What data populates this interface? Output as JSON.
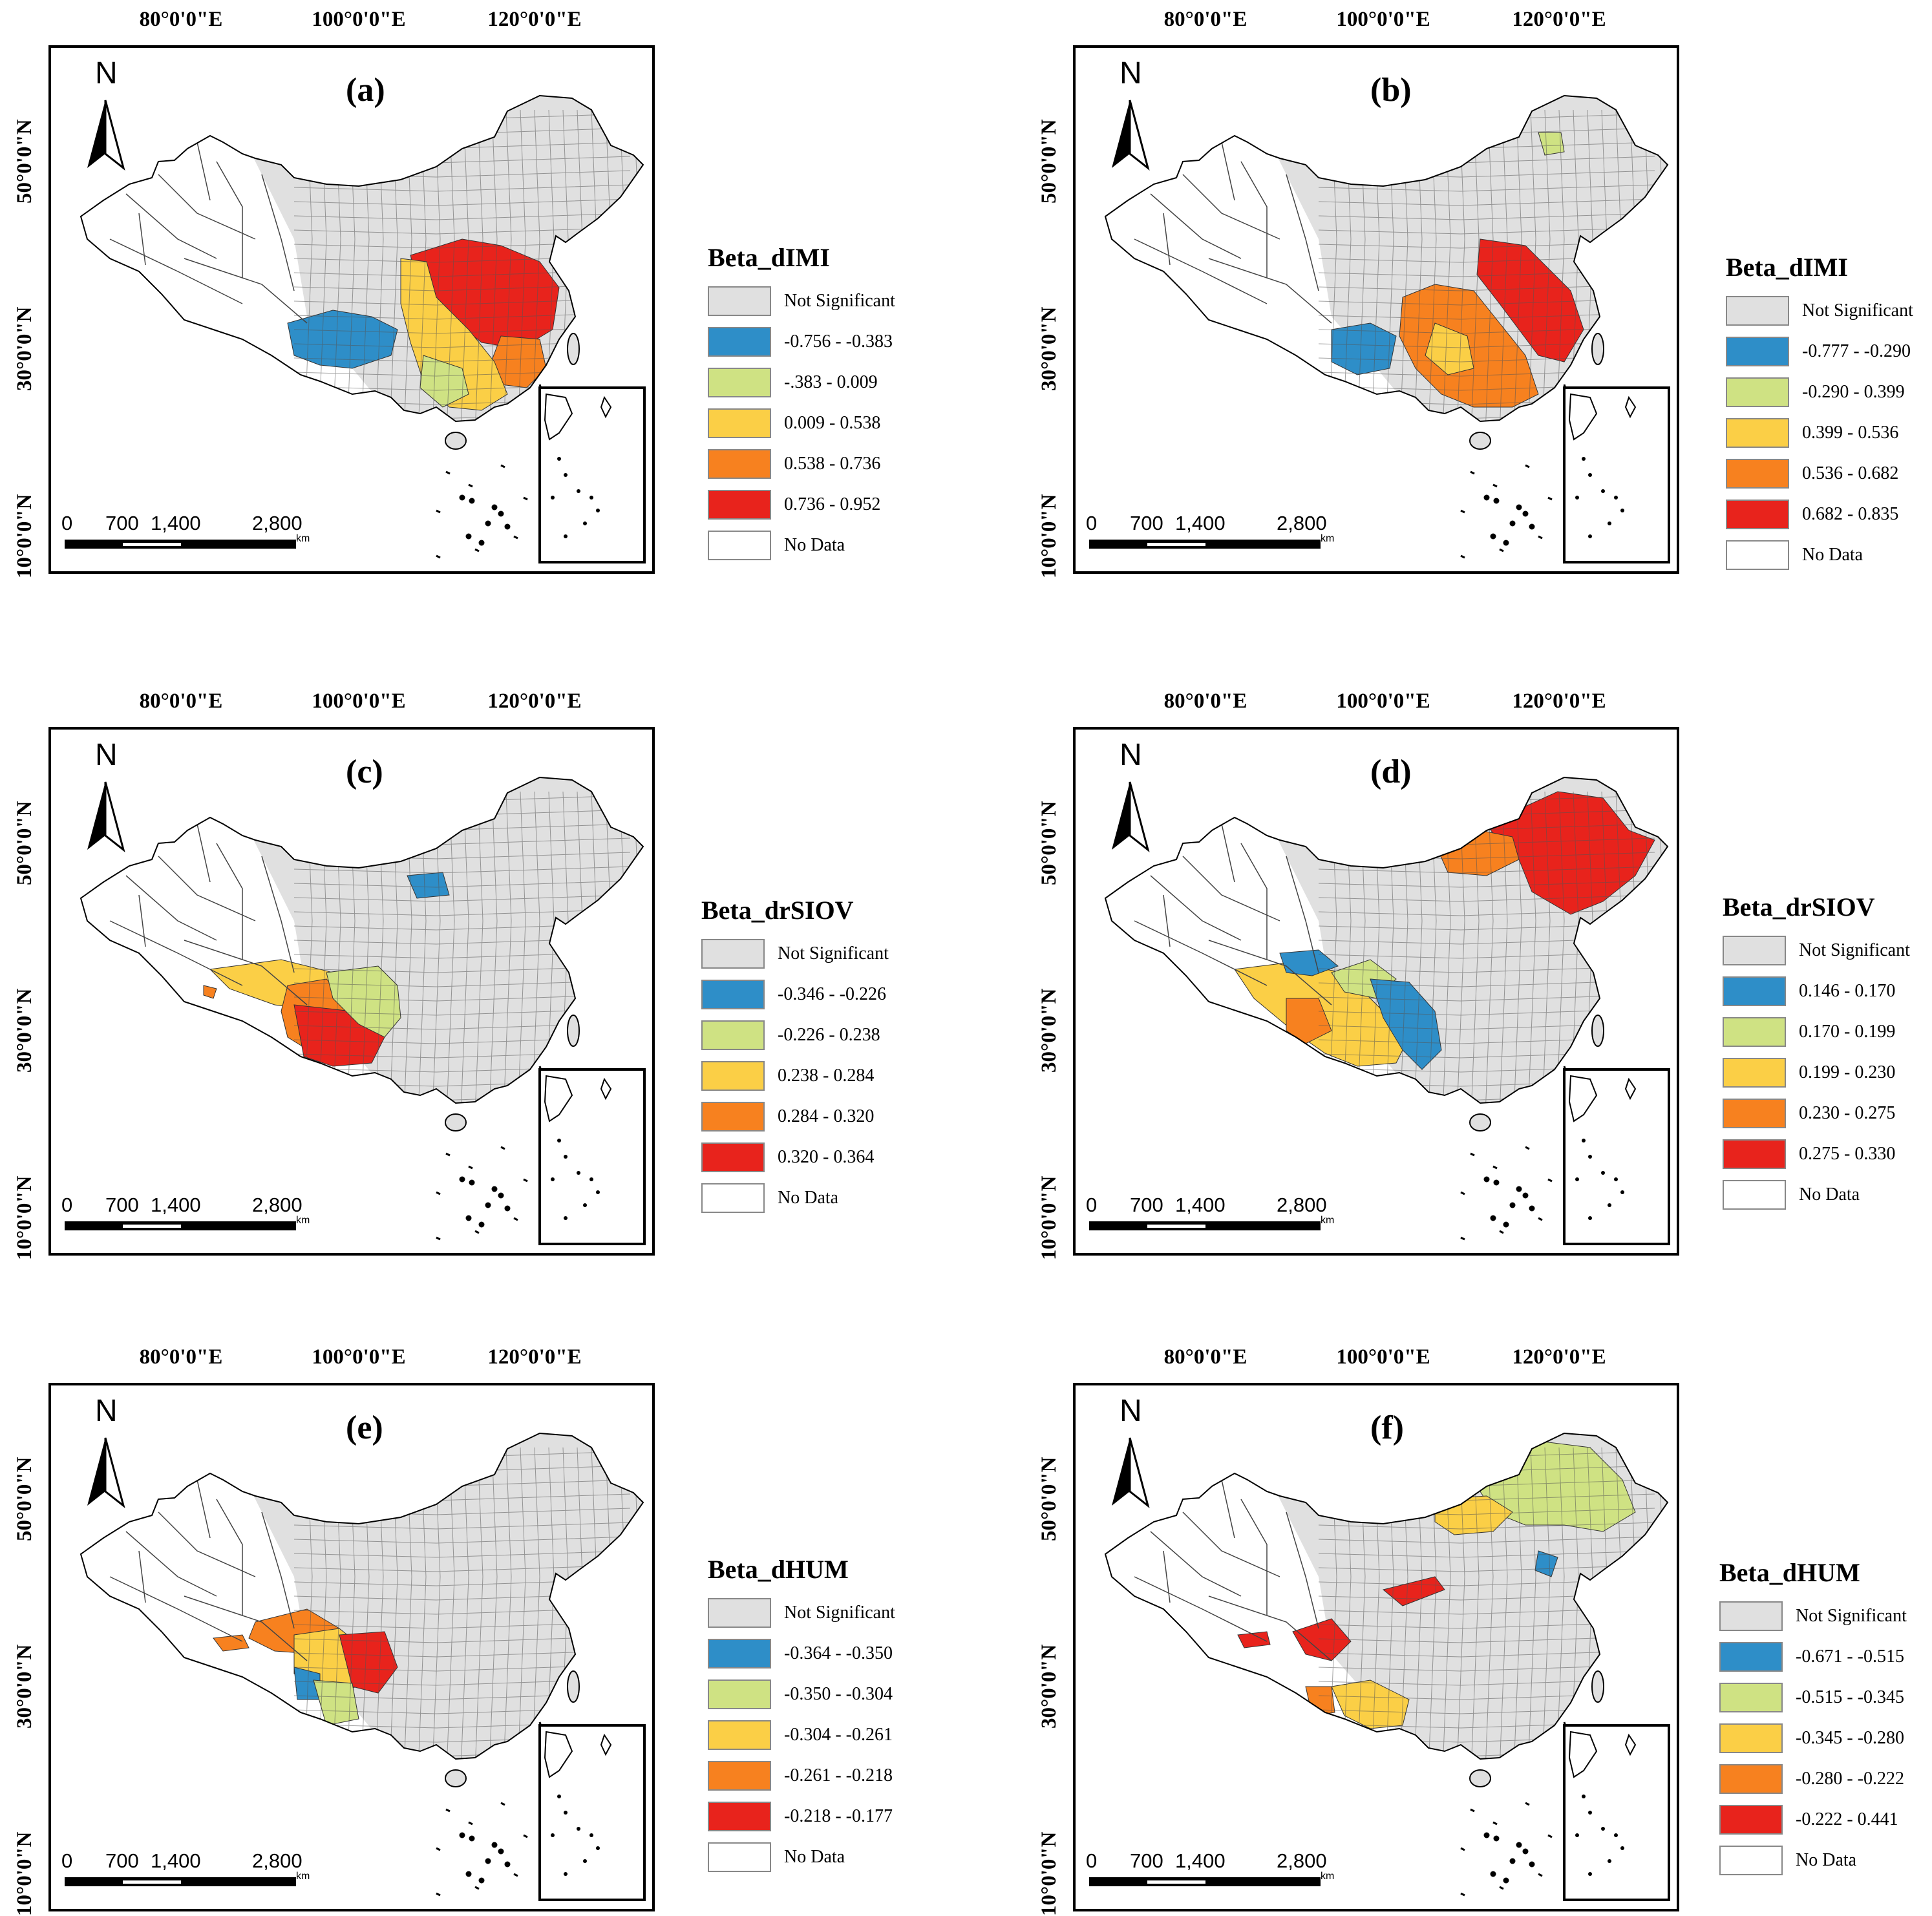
{
  "longitude_labels": [
    "80°0'0\"E",
    "100°0'0\"E",
    "120°0'0\"E"
  ],
  "latitude_labels": [
    "50°0'0\"N",
    "30°0'0\"N",
    "10°0'0\"N"
  ],
  "north_arrow_label": "N",
  "scale_bar": {
    "ticks": [
      "0",
      "700",
      "1,400",
      "2,800"
    ],
    "unit": "km"
  },
  "panels": [
    {
      "label": "(a)",
      "legend_title": "Beta_dIMI",
      "classes": [
        "Not Significant",
        "-0.756 - -0.383",
        "-.383 - 0.009",
        "0.009 - 0.538",
        "0.538 - 0.736",
        "0.736 - 0.952",
        "No Data"
      ],
      "class_colors": [
        "#e0e0e0",
        "#2e8ec8",
        "#cfe283",
        "#fbcf46",
        "#f7811f",
        "#e8231c",
        "#ffffff"
      ]
    },
    {
      "label": "(b)",
      "legend_title": "Beta_dIMI",
      "classes": [
        "Not Significant",
        "-0.777 - -0.290",
        "-0.290 - 0.399",
        "0.399 - 0.536",
        "0.536 - 0.682",
        "0.682 - 0.835",
        "No Data"
      ],
      "class_colors": [
        "#e0e0e0",
        "#2e8ec8",
        "#cfe283",
        "#fbcf46",
        "#f7811f",
        "#e8231c",
        "#ffffff"
      ]
    },
    {
      "label": "(c)",
      "legend_title": "Beta_drSIOV",
      "classes": [
        "Not Significant",
        "-0.346 - -0.226",
        "-0.226 - 0.238",
        "0.238 - 0.284",
        "0.284 - 0.320",
        "0.320 - 0.364",
        "No Data"
      ],
      "class_colors": [
        "#e0e0e0",
        "#2e8ec8",
        "#cfe283",
        "#fbcf46",
        "#f7811f",
        "#e8231c",
        "#ffffff"
      ]
    },
    {
      "label": "(d)",
      "legend_title": "Beta_drSIOV",
      "classes": [
        "Not Significant",
        "0.146 - 0.170",
        "0.170 - 0.199",
        "0.199 - 0.230",
        "0.230 - 0.275",
        "0.275 - 0.330",
        "No Data"
      ],
      "class_colors": [
        "#e0e0e0",
        "#2e8ec8",
        "#cfe283",
        "#fbcf46",
        "#f7811f",
        "#e8231c",
        "#ffffff"
      ]
    },
    {
      "label": "(e)",
      "legend_title": "Beta_dHUM",
      "classes": [
        "Not Significant",
        "-0.364 - -0.350",
        "-0.350 - -0.304",
        "-0.304 - -0.261",
        "-0.261 - -0.218",
        "-0.218 - -0.177",
        "No Data"
      ],
      "class_colors": [
        "#e0e0e0",
        "#2e8ec8",
        "#cfe283",
        "#fbcf46",
        "#f7811f",
        "#e8231c",
        "#ffffff"
      ]
    },
    {
      "label": "(f)",
      "legend_title": "Beta_dHUM",
      "classes": [
        "Not Significant",
        "-0.671 - -0.515",
        "-0.515 - -0.345",
        "-0.345 - -0.280",
        "-0.280 - -0.222",
        "-0.222 - 0.441",
        "No Data"
      ],
      "class_colors": [
        "#e0e0e0",
        "#2e8ec8",
        "#cfe283",
        "#fbcf46",
        "#f7811f",
        "#e8231c",
        "#ffffff"
      ]
    }
  ]
}
